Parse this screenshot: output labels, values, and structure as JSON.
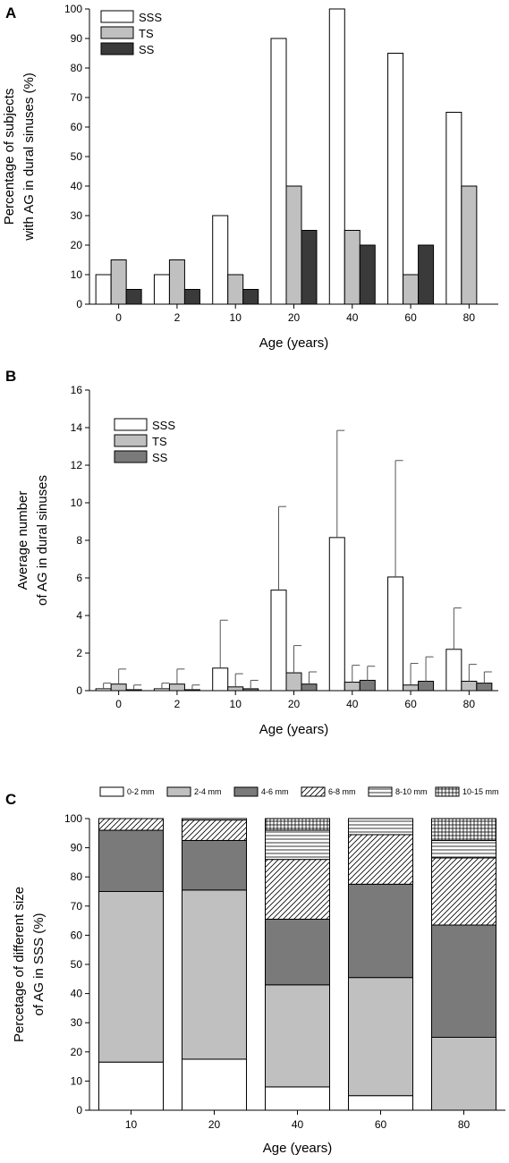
{
  "chart_data": [
    {
      "panel": "A",
      "type": "bar",
      "xlabel": "Age (years)",
      "ylabel_lines": [
        "Percentage of subjects",
        "with AG in dural sinuses (%)"
      ],
      "ylim": [
        0,
        100
      ],
      "yticks": [
        "0",
        "10",
        "20",
        "30",
        "40",
        "50",
        "60",
        "70",
        "80",
        "90",
        "100"
      ],
      "categories": [
        "0",
        "2",
        "10",
        "20",
        "40",
        "60",
        "80"
      ],
      "legend_position": "top-left",
      "series": [
        {
          "name": "SSS",
          "color": "#ffffff",
          "values": [
            10,
            10,
            30,
            90,
            100,
            85,
            65
          ]
        },
        {
          "name": "TS",
          "color": "#c0c0c0",
          "values": [
            15,
            15,
            10,
            40,
            25,
            10,
            40
          ]
        },
        {
          "name": "SS",
          "color": "#3a3a3a",
          "values": [
            5,
            5,
            5,
            25,
            20,
            20,
            0
          ]
        }
      ]
    },
    {
      "panel": "B",
      "type": "bar",
      "xlabel": "Age (years)",
      "ylabel_lines": [
        "Average number",
        "of AG in dural sinuses"
      ],
      "ylim": [
        0,
        16
      ],
      "yticks": [
        "0",
        "2",
        "4",
        "6",
        "8",
        "10",
        "12",
        "14",
        "16"
      ],
      "categories": [
        "0",
        "2",
        "10",
        "20",
        "40",
        "60",
        "80"
      ],
      "legend_position": "top-left",
      "series": [
        {
          "name": "SSS",
          "color": "#ffffff",
          "values": [
            0.1,
            0.1,
            1.2,
            5.35,
            8.15,
            6.05,
            2.2
          ],
          "errors": [
            0.3,
            0.3,
            2.55,
            4.45,
            5.7,
            6.2,
            2.2
          ]
        },
        {
          "name": "TS",
          "color": "#c0c0c0",
          "values": [
            0.35,
            0.35,
            0.2,
            0.95,
            0.45,
            0.3,
            0.5
          ],
          "errors": [
            0.8,
            0.8,
            0.7,
            1.45,
            0.9,
            1.15,
            0.9
          ]
        },
        {
          "name": "SS",
          "color": "#7a7a7a",
          "values": [
            0.05,
            0.05,
            0.1,
            0.35,
            0.55,
            0.5,
            0.4
          ],
          "errors": [
            0.25,
            0.25,
            0.45,
            0.65,
            0.75,
            1.3,
            0.6
          ]
        }
      ]
    },
    {
      "panel": "C",
      "type": "stacked-bar",
      "xlabel": "Age (years)",
      "ylabel_lines": [
        "Percetage of different size",
        "of AG in SSS (%)"
      ],
      "ylim": [
        0,
        100
      ],
      "yticks": [
        "0",
        "10",
        "20",
        "30",
        "40",
        "50",
        "60",
        "70",
        "80",
        "90",
        "100"
      ],
      "categories": [
        "10",
        "20",
        "40",
        "60",
        "80"
      ],
      "legend_position": "top",
      "series": [
        {
          "name": "0-2 mm",
          "pattern": "white",
          "values": [
            16.5,
            17.5,
            8,
            5,
            0
          ]
        },
        {
          "name": "2-4 mm",
          "pattern": "light",
          "values": [
            58.5,
            58,
            35,
            40.5,
            25
          ]
        },
        {
          "name": "4-6 mm",
          "pattern": "dark",
          "values": [
            21,
            17,
            22.5,
            32,
            38.5
          ]
        },
        {
          "name": "6-8 mm",
          "pattern": "diag",
          "values": [
            4,
            7,
            20.5,
            17,
            23
          ]
        },
        {
          "name": "8-10 mm",
          "pattern": "hlines",
          "values": [
            0,
            0.5,
            10,
            5.5,
            6
          ]
        },
        {
          "name": "10-15 mm",
          "pattern": "grid",
          "values": [
            0,
            0,
            4,
            0,
            7.5
          ]
        }
      ]
    }
  ]
}
